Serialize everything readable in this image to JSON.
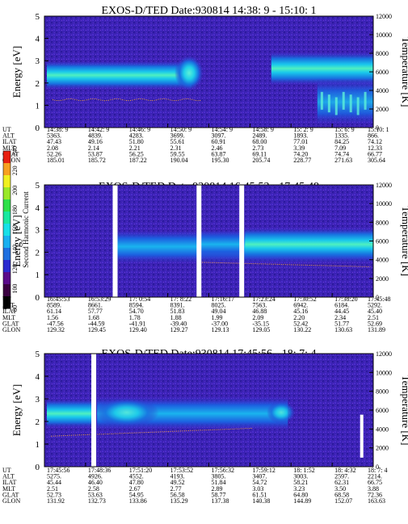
{
  "colorbar": {
    "label": "Second Harmonic Current",
    "ticks": [
      "80",
      "100",
      "120",
      "140",
      "160",
      "180",
      "200",
      "220",
      "240"
    ],
    "colors": [
      "#000000",
      "#3a0040",
      "#5a0a8a",
      "#2a2ad0",
      "#1f6fe0",
      "#19b0f0",
      "#17e0e8",
      "#19e8a0",
      "#2ee04a",
      "#9ae828",
      "#f0f020",
      "#f7a020",
      "#e82010"
    ]
  },
  "panels": [
    {
      "title": "EXOS-D/TED   Date:930814  14:38: 9 - 15:10: 1",
      "ylabel": "Energy [eV]",
      "y2label": "Temperature [K]",
      "yticks": [
        "0",
        "1",
        "2",
        "3",
        "4",
        "5"
      ],
      "y2ticks": [
        "0",
        "2000",
        "4000",
        "6000",
        "8000",
        "10000",
        "12000"
      ],
      "gaps": [],
      "table_labels": [
        "UT",
        "ALT",
        "ILAT",
        "MLT",
        "GLAT",
        "GLON"
      ],
      "columns": [
        [
          "14:38: 9",
          "5363.",
          "47.43",
          "2.08",
          "52.26",
          "185.01"
        ],
        [
          "14:42: 9",
          "4839.",
          "49.16",
          "2.14",
          "53.87",
          "185.72"
        ],
        [
          "14:46: 9",
          "4283.",
          "51.80",
          "2.21",
          "56.25",
          "187.22"
        ],
        [
          "14:50: 9",
          "3699.",
          "55.61",
          "2.31",
          "59.55",
          "190.04"
        ],
        [
          "14:54: 9",
          "3097.",
          "60.91",
          "2.46",
          "63.87",
          "195.30"
        ],
        [
          "14:58: 9",
          "2489.",
          "68.00",
          "2.73",
          "69.11",
          "205.74"
        ],
        [
          "15: 2: 9",
          "1893.",
          "77.01",
          "3.39",
          "74.20",
          "228.77"
        ],
        [
          "15: 6: 9",
          "1335.",
          "84.25",
          "7.09",
          "74.74",
          "271.63"
        ],
        [
          "15:10: 1",
          "866.",
          "74.12",
          "12.33",
          "66.77",
          "305.64"
        ]
      ]
    },
    {
      "title": "EXOS-D/TED   Date:930814  16:45:53 - 17:45:48",
      "ylabel": "Energy [eV]",
      "y2label": "Temperature [K]",
      "yticks": [
        "0",
        "1",
        "2",
        "3",
        "4",
        "5"
      ],
      "y2ticks": [
        "0",
        "2000",
        "4000",
        "6000",
        "8000",
        "10000",
        "12000"
      ],
      "gaps": [
        0.215,
        0.47,
        0.6
      ],
      "table_labels": [
        "UT",
        "ALT",
        "ILAT",
        "MLT",
        "GLAT",
        "GLON"
      ],
      "columns": [
        [
          "16:45:53",
          "8589.",
          "61.14",
          "1.56",
          "-47.56",
          "129.32"
        ],
        [
          "16:53:29",
          "8661.",
          "57.77",
          "1.68",
          "-44.59",
          "129.45"
        ],
        [
          "17: 0:54",
          "8594.",
          "54.70",
          "1.78",
          "-41.91",
          "129.40"
        ],
        [
          "17: 8:22",
          "8391.",
          "51.83",
          "1.88",
          "-39.40",
          "129.27"
        ],
        [
          "17:16:17",
          "8025.",
          "49.04",
          "1.99",
          "-37.00",
          "129.13"
        ],
        [
          "17:23:24",
          "7563.",
          "46.88",
          "2.09",
          "-35.15",
          "129.05"
        ],
        [
          "17:30:52",
          "6942.",
          "45.16",
          "2.20",
          "52.42",
          "130.22"
        ],
        [
          "17:38:20",
          "6184.",
          "44.45",
          "2.34",
          "51.77",
          "130.63"
        ],
        [
          "17:45:48",
          "5292.",
          "45.40",
          "2.51",
          "52.69",
          "131.89"
        ]
      ]
    },
    {
      "title": "EXOS-D/TED   Date:930814  17:45:56 - 18: 7: 4",
      "ylabel": "Energy [eV]",
      "y2label": "Temperature [K]",
      "yticks": [
        "0",
        "1",
        "2",
        "3",
        "4",
        "5"
      ],
      "y2ticks": [
        "0",
        "2000",
        "4000",
        "6000",
        "8000",
        "10000",
        "12000"
      ],
      "gaps": [
        0.15
      ],
      "table_labels": [
        "UT",
        "ALT",
        "ILAT",
        "MLT",
        "GLAT",
        "GLON"
      ],
      "columns": [
        [
          "17:45:56",
          "5275.",
          "45.44",
          "2.51",
          "52.73",
          "131.92"
        ],
        [
          "17:48:36",
          "4926.",
          "46.40",
          "2.58",
          "53.63",
          "132.73"
        ],
        [
          "17:51:20",
          "4552.",
          "47.80",
          "2.67",
          "54.95",
          "133.86"
        ],
        [
          "17:53:52",
          "4193.",
          "49.52",
          "2.77",
          "56.58",
          "135.29"
        ],
        [
          "17:56:32",
          "3805.",
          "51.84",
          "2.89",
          "58.77",
          "137.38"
        ],
        [
          "17:59:12",
          "3407.",
          "54.72",
          "3.03",
          "61.51",
          "140.38"
        ],
        [
          "18: 1:52",
          "3003.",
          "58.21",
          "3.23",
          "64.80",
          "144.89"
        ],
        [
          "18: 4:32",
          "2597.",
          "62.31",
          "3.50",
          "68.58",
          "152.07"
        ],
        [
          "18: 7: 4",
          "2214.",
          "66.75",
          "3.88",
          "72.36",
          "163.63"
        ]
      ]
    }
  ]
}
